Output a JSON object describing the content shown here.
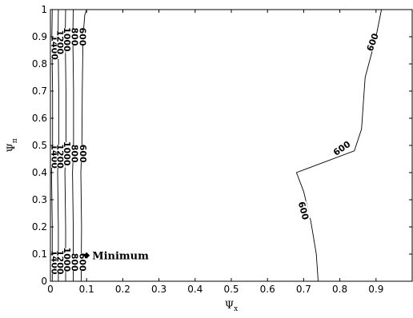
{
  "chart_data": {
    "type": "contour",
    "xlabel": "Ψ",
    "xlabel_sub": "x",
    "ylabel": "Ψ",
    "ylabel_sub": "π",
    "xlim": [
      0,
      1
    ],
    "ylim": [
      0,
      1
    ],
    "xticks": [
      "0",
      "0.1",
      "0.2",
      "0.3",
      "0.4",
      "0.5",
      "0.6",
      "0.7",
      "0.8",
      "0.9"
    ],
    "yticks": [
      "0",
      "0.1",
      "0.2",
      "0.3",
      "0.4",
      "0.5",
      "0.6",
      "0.7",
      "0.8",
      "0.9",
      "1"
    ],
    "grid": false,
    "contours": [
      {
        "level": "1400",
        "points": [
          [
            0.005,
            0
          ],
          [
            0.005,
            0.2
          ],
          [
            0.003,
            0.4
          ],
          [
            0.006,
            0.5
          ],
          [
            0.006,
            0.7
          ],
          [
            0.004,
            0.9
          ],
          [
            0.005,
            1
          ]
        ],
        "labels": [
          {
            "text": "1400",
            "x": 0.012,
            "y": 0.86,
            "rot": 90
          },
          {
            "text": "1400",
            "x": 0.012,
            "y": 0.46,
            "rot": 90
          },
          {
            "text": "1400",
            "x": 0.012,
            "y": 0.07,
            "rot": 90
          }
        ]
      },
      {
        "level": "1200",
        "points": [
          [
            0.022,
            0
          ],
          [
            0.022,
            0.2
          ],
          [
            0.02,
            0.4
          ],
          [
            0.023,
            0.5
          ],
          [
            0.023,
            0.7
          ],
          [
            0.021,
            0.9
          ],
          [
            0.022,
            1
          ]
        ],
        "labels": [
          {
            "text": "1200",
            "x": 0.028,
            "y": 0.88,
            "rot": 90
          },
          {
            "text": "1200",
            "x": 0.028,
            "y": 0.46,
            "rot": 90
          },
          {
            "text": "1200",
            "x": 0.028,
            "y": 0.07,
            "rot": 90
          }
        ]
      },
      {
        "level": "1000",
        "points": [
          [
            0.042,
            0
          ],
          [
            0.042,
            0.2
          ],
          [
            0.04,
            0.4
          ],
          [
            0.043,
            0.5
          ],
          [
            0.043,
            0.7
          ],
          [
            0.041,
            0.9
          ],
          [
            0.042,
            1
          ]
        ],
        "labels": [
          {
            "text": "1000",
            "x": 0.047,
            "y": 0.89,
            "rot": 90
          },
          {
            "text": "1000",
            "x": 0.047,
            "y": 0.47,
            "rot": 90
          },
          {
            "text": "1000",
            "x": 0.047,
            "y": 0.08,
            "rot": 90
          }
        ]
      },
      {
        "level": "800",
        "points": [
          [
            0.063,
            0
          ],
          [
            0.063,
            0.2
          ],
          [
            0.061,
            0.4
          ],
          [
            0.064,
            0.5
          ],
          [
            0.064,
            0.7
          ],
          [
            0.062,
            0.9
          ],
          [
            0.063,
            1
          ]
        ],
        "labels": [
          {
            "text": "800",
            "x": 0.068,
            "y": 0.9,
            "rot": 90
          },
          {
            "text": "800",
            "x": 0.068,
            "y": 0.47,
            "rot": 90
          },
          {
            "text": "800",
            "x": 0.068,
            "y": 0.07,
            "rot": 90
          }
        ]
      },
      {
        "level": "600",
        "points": [
          [
            0.085,
            0
          ],
          [
            0.086,
            0.2
          ],
          [
            0.084,
            0.4
          ],
          [
            0.087,
            0.5
          ],
          [
            0.088,
            0.7
          ],
          [
            0.09,
            0.9
          ],
          [
            0.095,
            0.98
          ],
          [
            0.1,
            1
          ]
        ],
        "labels": [
          {
            "text": "600",
            "x": 0.09,
            "y": 0.9,
            "rot": 90
          },
          {
            "text": "600",
            "x": 0.091,
            "y": 0.47,
            "rot": 90
          },
          {
            "text": "600",
            "x": 0.09,
            "y": 0.07,
            "rot": 90
          }
        ]
      },
      {
        "level": "600",
        "points": [
          [
            0.74,
            0
          ],
          [
            0.735,
            0.1
          ],
          [
            0.72,
            0.22
          ],
          [
            0.7,
            0.33
          ],
          [
            0.68,
            0.4
          ],
          [
            0.84,
            0.48
          ],
          [
            0.86,
            0.56
          ],
          [
            0.87,
            0.75
          ],
          [
            0.9,
            0.9
          ],
          [
            0.915,
            1
          ]
        ],
        "labels": [
          {
            "text": "600",
            "x": 0.7,
            "y": 0.26,
            "rot": 75
          },
          {
            "text": "600",
            "x": 0.805,
            "y": 0.49,
            "rot": -35
          },
          {
            "text": "600",
            "x": 0.89,
            "y": 0.88,
            "rot": -70
          }
        ]
      }
    ],
    "annotations": [
      {
        "text": "Minimum",
        "x": 0.1,
        "y": 0.095
      }
    ]
  }
}
